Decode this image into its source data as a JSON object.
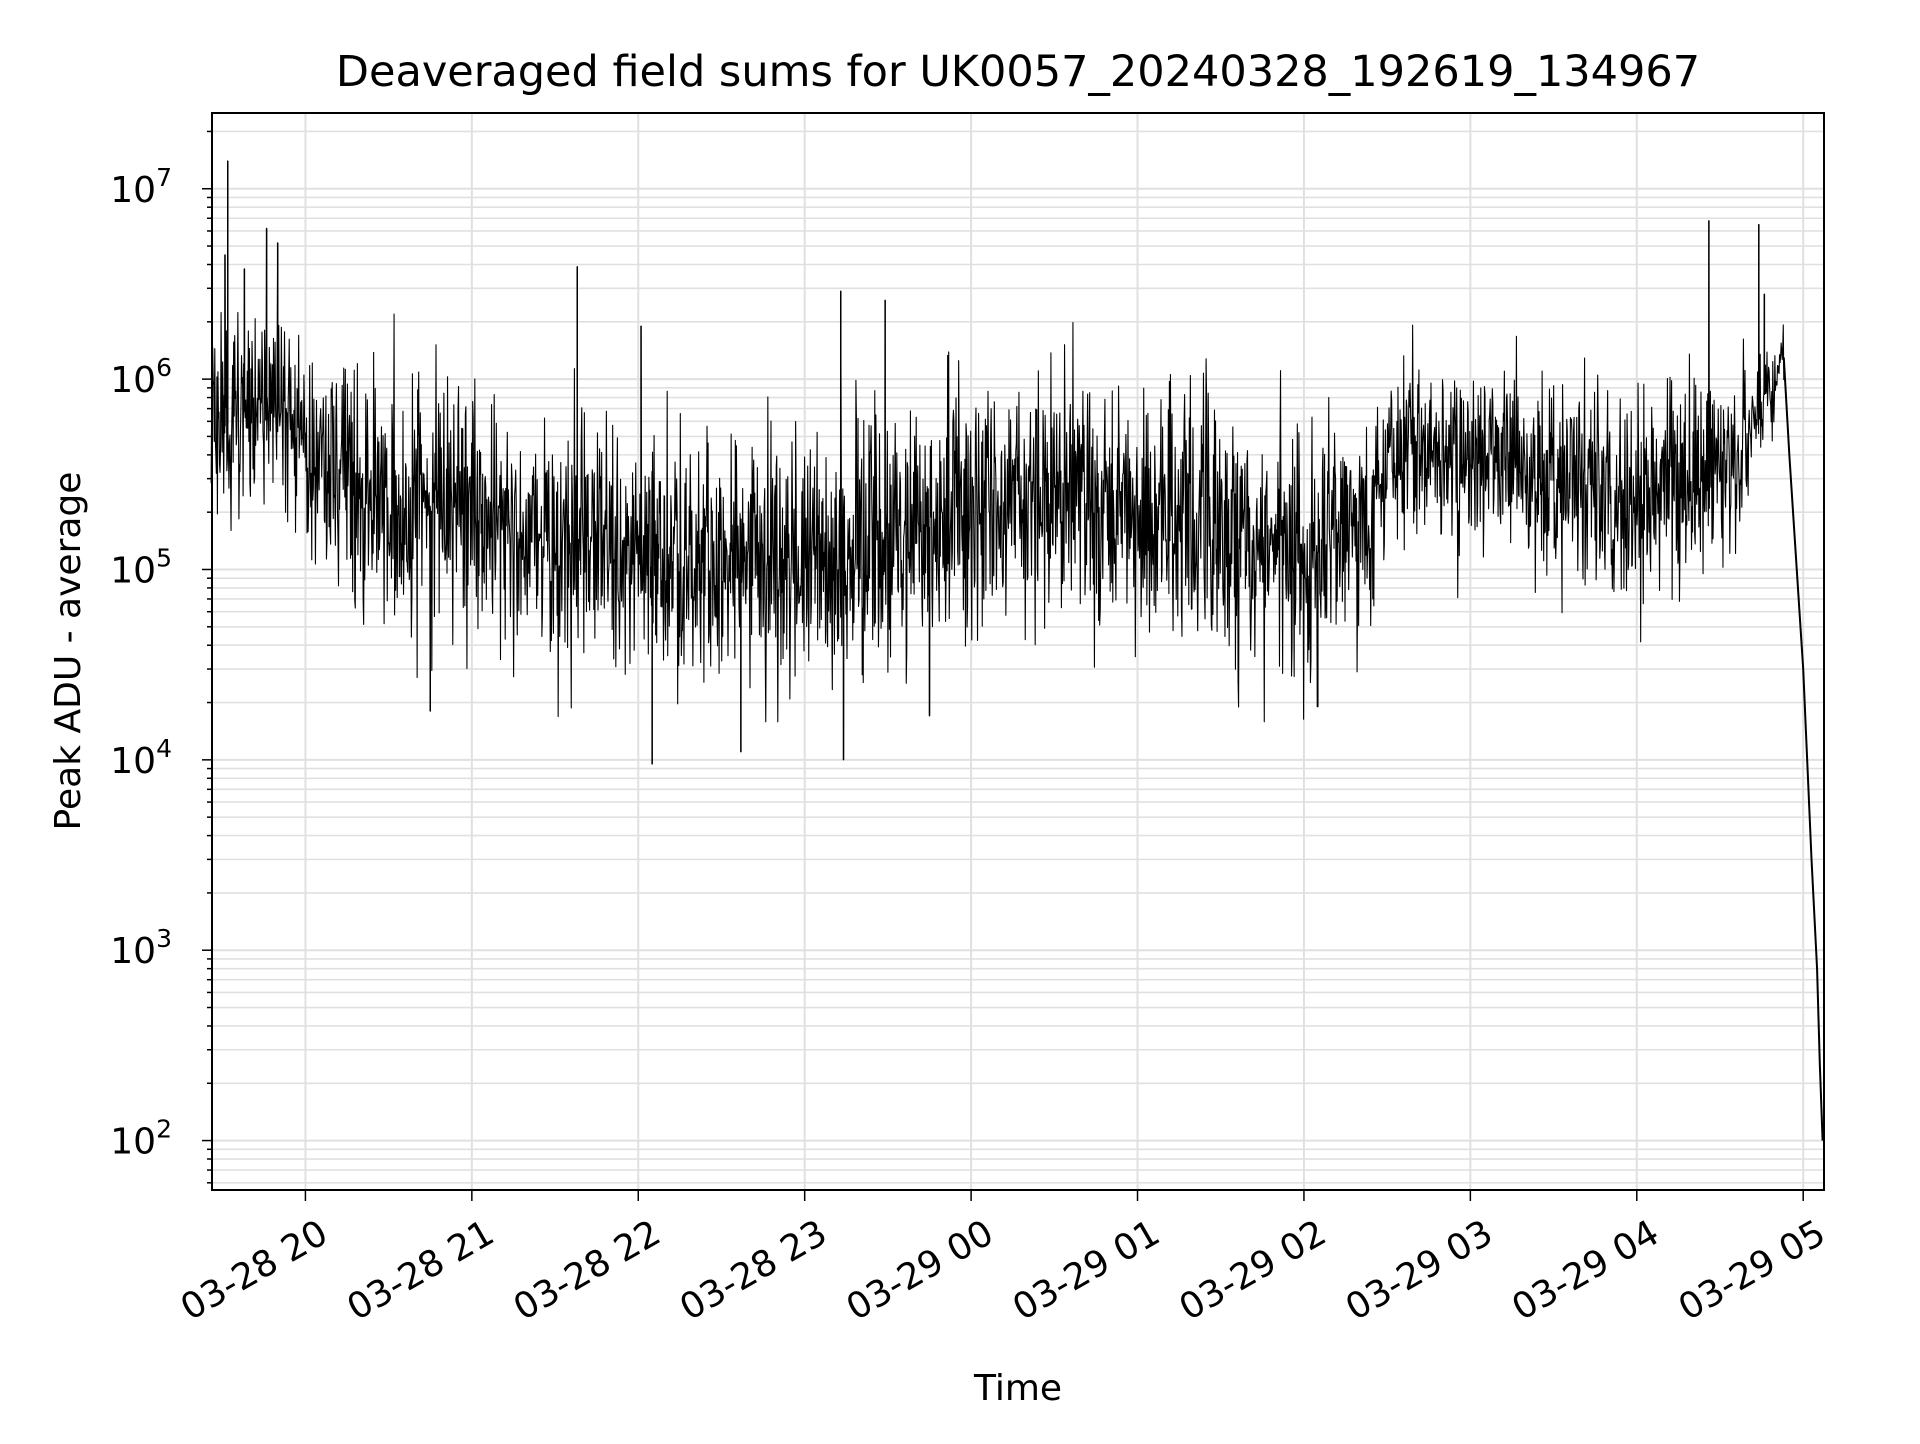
{
  "chart_data": {
    "type": "line",
    "title": "Deaveraged field sums for UK0057_20240328_192619_134967",
    "xlabel": "Time",
    "ylabel": "Peak ADU - average",
    "yscale": "log",
    "ylim": [
      55,
      25000000
    ],
    "xlim": [
      "2024-03-28 19:26:19",
      "2024-03-29 05:07:30"
    ],
    "grid": true,
    "line_color": "#000000",
    "grid_color": "#e0e0e0",
    "x_ticks": [
      {
        "t": "2024-03-28 20:00",
        "label": "03-28 20"
      },
      {
        "t": "2024-03-28 21:00",
        "label": "03-28 21"
      },
      {
        "t": "2024-03-28 22:00",
        "label": "03-28 22"
      },
      {
        "t": "2024-03-28 23:00",
        "label": "03-28 23"
      },
      {
        "t": "2024-03-29 00:00",
        "label": "03-29 00"
      },
      {
        "t": "2024-03-29 01:00",
        "label": "03-29 01"
      },
      {
        "t": "2024-03-29 02:00",
        "label": "03-29 02"
      },
      {
        "t": "2024-03-29 03:00",
        "label": "03-29 03"
      },
      {
        "t": "2024-03-29 04:00",
        "label": "03-29 04"
      },
      {
        "t": "2024-03-29 05:00",
        "label": "03-29 05"
      }
    ],
    "y_ticks": [
      {
        "value": 100,
        "base": "10",
        "exp": "2"
      },
      {
        "value": 1000,
        "base": "10",
        "exp": "3"
      },
      {
        "value": 10000,
        "base": "10",
        "exp": "4"
      },
      {
        "value": 100000,
        "base": "10",
        "exp": "5"
      },
      {
        "value": 1000000,
        "base": "10",
        "exp": "6"
      },
      {
        "value": 10000000,
        "base": "10",
        "exp": "7"
      }
    ],
    "envelope": [
      {
        "t": "2024-03-28 19:26",
        "center": 500000,
        "spread": 1.0
      },
      {
        "t": "2024-03-28 19:45",
        "center": 800000,
        "spread": 0.9
      },
      {
        "t": "2024-03-28 20:00",
        "center": 400000,
        "spread": 1.0
      },
      {
        "t": "2024-03-28 20:30",
        "center": 220000,
        "spread": 1.1
      },
      {
        "t": "2024-03-28 21:00",
        "center": 200000,
        "spread": 1.1
      },
      {
        "t": "2024-03-28 21:30",
        "center": 170000,
        "spread": 1.1
      },
      {
        "t": "2024-03-28 22:00",
        "center": 130000,
        "spread": 1.1
      },
      {
        "t": "2024-03-28 22:30",
        "center": 110000,
        "spread": 1.1
      },
      {
        "t": "2024-03-28 23:00",
        "center": 110000,
        "spread": 1.1
      },
      {
        "t": "2024-03-28 23:30",
        "center": 140000,
        "spread": 1.1
      },
      {
        "t": "2024-03-29 00:00",
        "center": 200000,
        "spread": 1.1
      },
      {
        "t": "2024-03-29 00:30",
        "center": 260000,
        "spread": 1.1
      },
      {
        "t": "2024-03-29 01:00",
        "center": 210000,
        "spread": 1.1
      },
      {
        "t": "2024-03-29 01:30",
        "center": 150000,
        "spread": 1.1
      },
      {
        "t": "2024-03-29 02:00",
        "center": 110000,
        "spread": 1.1
      },
      {
        "t": "2024-03-29 02:25",
        "center": 200000,
        "spread": 1.0
      },
      {
        "t": "2024-03-29 02:30",
        "center": 400000,
        "spread": 0.8
      },
      {
        "t": "2024-03-29 03:00",
        "center": 380000,
        "spread": 0.8
      },
      {
        "t": "2024-03-29 03:30",
        "center": 300000,
        "spread": 0.9
      },
      {
        "t": "2024-03-29 04:00",
        "center": 250000,
        "spread": 1.0
      },
      {
        "t": "2024-03-29 04:35",
        "center": 350000,
        "spread": 0.8
      },
      {
        "t": "2024-03-29 04:45",
        "center": 800000,
        "spread": 0.5
      },
      {
        "t": "2024-03-29 04:53",
        "center": 1200000,
        "spread": 0.3
      }
    ],
    "tail": [
      {
        "t": "2024-03-29 04:53",
        "value": 1300000
      },
      {
        "t": "2024-03-29 04:55",
        "value": 400000
      },
      {
        "t": "2024-03-29 05:00",
        "value": 30000
      },
      {
        "t": "2024-03-29 05:03",
        "value": 3000
      },
      {
        "t": "2024-03-29 05:05",
        "value": 800
      },
      {
        "t": "2024-03-29 05:06",
        "value": 250
      },
      {
        "t": "2024-03-29 05:07",
        "value": 100
      }
    ],
    "spikes": [
      {
        "t": "2024-03-28 19:32",
        "value": 14000000
      },
      {
        "t": "2024-03-28 19:31",
        "value": 4500000
      },
      {
        "t": "2024-03-28 19:38",
        "value": 3800000
      },
      {
        "t": "2024-03-28 19:46",
        "value": 6200000
      },
      {
        "t": "2024-03-28 19:50",
        "value": 5200000
      },
      {
        "t": "2024-03-28 21:38",
        "value": 3900000
      },
      {
        "t": "2024-03-28 22:01",
        "value": 1900000
      },
      {
        "t": "2024-03-28 23:13",
        "value": 2900000
      },
      {
        "t": "2024-03-28 23:29",
        "value": 2600000
      },
      {
        "t": "2024-03-29 04:26",
        "value": 6800000
      },
      {
        "t": "2024-03-29 04:44",
        "value": 6500000
      },
      {
        "t": "2024-03-29 04:46",
        "value": 2800000
      }
    ],
    "dips": [
      {
        "t": "2024-03-28 20:45",
        "value": 18000
      },
      {
        "t": "2024-03-28 22:05",
        "value": 9500
      },
      {
        "t": "2024-03-28 22:37",
        "value": 11000
      },
      {
        "t": "2024-03-28 23:14",
        "value": 10000
      },
      {
        "t": "2024-03-28 23:45",
        "value": 17000
      },
      {
        "t": "2024-03-29 02:05",
        "value": 19000
      }
    ]
  }
}
